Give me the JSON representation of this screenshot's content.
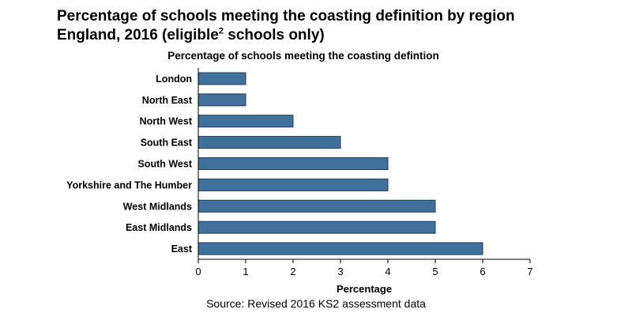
{
  "figure": {
    "title_line1": "Percentage of schools meeting the coasting definition by region",
    "title_line2_before": "England, 2016 (eligible",
    "title_superscript": "2",
    "title_line2_after": " schools only)",
    "source": "Source: Revised 2016 KS2 assessment data"
  },
  "chart_data": {
    "type": "bar",
    "orientation": "horizontal",
    "title": "Percentage of schools meeting the coasting defintion",
    "xlabel": "Percentage",
    "ylabel": "",
    "categories": [
      "London",
      "North East",
      "North West",
      "South East",
      "South West",
      "Yorkshire and The Humber",
      "West Midlands",
      "East Midlands",
      "East"
    ],
    "values": [
      1,
      1,
      2,
      3,
      4,
      4,
      5,
      5,
      6
    ],
    "xlim": [
      0,
      7
    ],
    "xticks": [
      0,
      1,
      2,
      3,
      4,
      5,
      6,
      7
    ],
    "grid": false,
    "legend": "none",
    "bar_color": "#41709a",
    "bar_edge_color": "#1f3f5c"
  }
}
